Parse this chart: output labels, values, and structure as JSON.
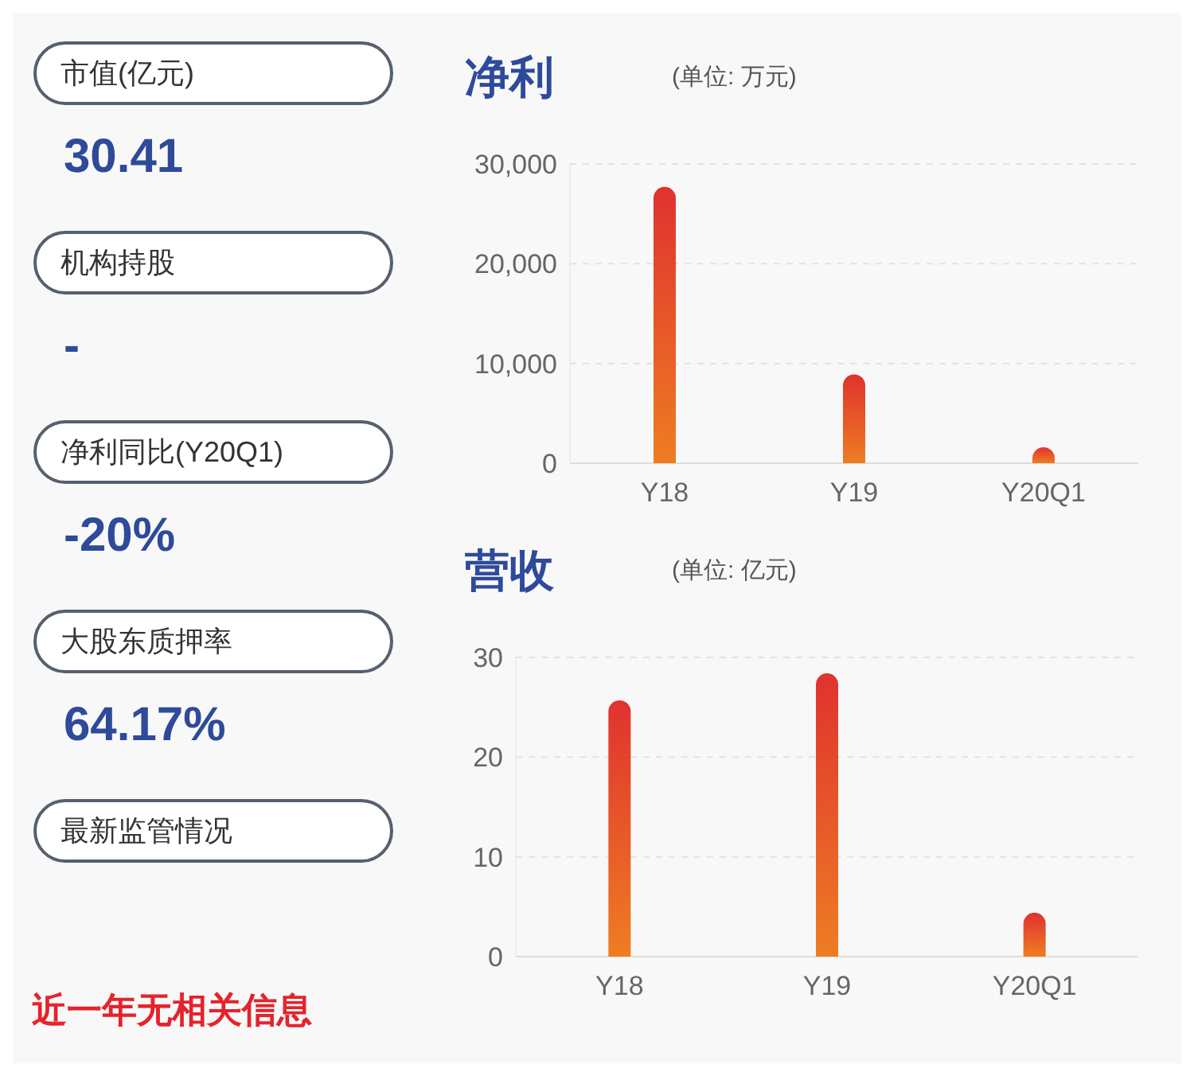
{
  "chart_data": [
    {
      "type": "other",
      "annotations": [
        "市值(亿元)",
        "30.41",
        "机构持股",
        "-",
        "净利同比(Y20Q1)",
        "-20%",
        "大股东质押率",
        "64.17%",
        "最新监管情况",
        "近一年无相关信息"
      ]
    },
    {
      "type": "bar",
      "title": "净利",
      "subtitle": "(单位: 万元)",
      "categories": [
        "Y18",
        "Y19",
        "Y20Q1"
      ],
      "values": [
        27700,
        8900,
        1600
      ],
      "color": "#e0322f",
      "ylim": [
        0,
        30000
      ],
      "yticks": [
        0,
        {
          "value": 10000,
          "label": "10,000"
        },
        {
          "value": 20000,
          "label": "20,000"
        },
        {
          "value": 30000,
          "label": "30,000"
        }
      ],
      "grid": "y"
    },
    {
      "type": "bar",
      "title": "营收",
      "subtitle": "(单位: 亿元)",
      "categories": [
        "Y18",
        "Y19",
        "Y20Q1"
      ],
      "values": [
        25.7,
        28.4,
        4.4
      ],
      "color": "#e0322f",
      "ylim": [
        0,
        30
      ],
      "yticks": [
        0,
        10,
        20,
        30
      ],
      "grid": "y"
    }
  ]
}
